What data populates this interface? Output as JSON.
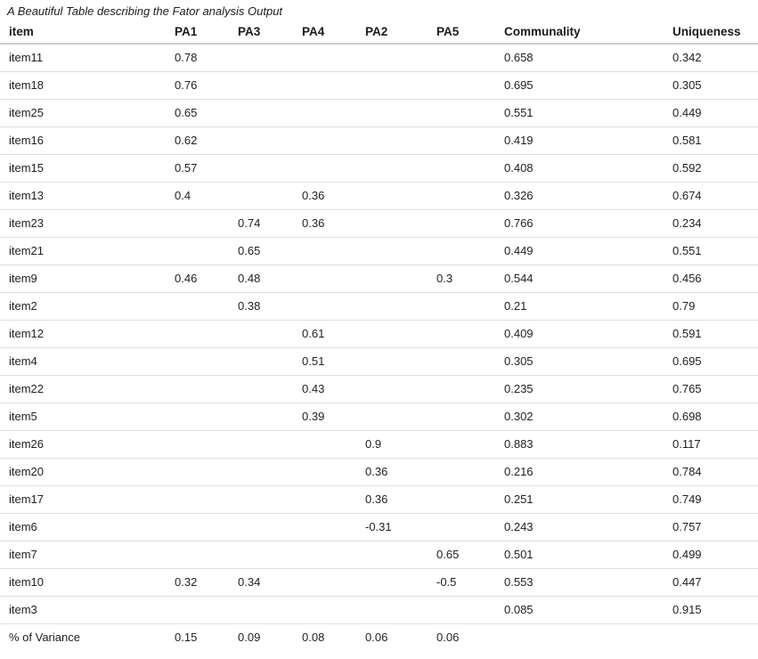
{
  "title": "A Beautiful Table describing the Fator analysis Output",
  "chart_data": {
    "type": "table",
    "title": "A Beautiful Table describing the Fator analysis Output",
    "columns": [
      "item",
      "PA1",
      "PA3",
      "PA4",
      "PA2",
      "PA5",
      "Communality",
      "Uniqueness"
    ],
    "rows": [
      [
        "item11",
        0.78,
        null,
        null,
        null,
        null,
        0.658,
        0.342
      ],
      [
        "item18",
        0.76,
        null,
        null,
        null,
        null,
        0.695,
        0.305
      ],
      [
        "item25",
        0.65,
        null,
        null,
        null,
        null,
        0.551,
        0.449
      ],
      [
        "item16",
        0.62,
        null,
        null,
        null,
        null,
        0.419,
        0.581
      ],
      [
        "item15",
        0.57,
        null,
        null,
        null,
        null,
        0.408,
        0.592
      ],
      [
        "item13",
        0.4,
        null,
        0.36,
        null,
        null,
        0.326,
        0.674
      ],
      [
        "item23",
        null,
        0.74,
        0.36,
        null,
        null,
        0.766,
        0.234
      ],
      [
        "item21",
        null,
        0.65,
        null,
        null,
        null,
        0.449,
        0.551
      ],
      [
        "item9",
        0.46,
        0.48,
        null,
        null,
        0.3,
        0.544,
        0.456
      ],
      [
        "item2",
        null,
        0.38,
        null,
        null,
        null,
        0.21,
        0.79
      ],
      [
        "item12",
        null,
        null,
        0.61,
        null,
        null,
        0.409,
        0.591
      ],
      [
        "item4",
        null,
        null,
        0.51,
        null,
        null,
        0.305,
        0.695
      ],
      [
        "item22",
        null,
        null,
        0.43,
        null,
        null,
        0.235,
        0.765
      ],
      [
        "item5",
        null,
        null,
        0.39,
        null,
        null,
        0.302,
        0.698
      ],
      [
        "item26",
        null,
        null,
        null,
        0.9,
        null,
        0.883,
        0.117
      ],
      [
        "item20",
        null,
        null,
        null,
        0.36,
        null,
        0.216,
        0.784
      ],
      [
        "item17",
        null,
        null,
        null,
        0.36,
        null,
        0.251,
        0.749
      ],
      [
        "item6",
        null,
        null,
        null,
        -0.31,
        null,
        0.243,
        0.757
      ],
      [
        "item7",
        null,
        null,
        null,
        null,
        0.65,
        0.501,
        0.499
      ],
      [
        "item10",
        0.32,
        0.34,
        null,
        null,
        -0.5,
        0.553,
        0.447
      ],
      [
        "item3",
        null,
        null,
        null,
        null,
        null,
        0.085,
        0.915
      ],
      [
        "% of Variance",
        0.15,
        0.09,
        0.08,
        0.06,
        0.06,
        null,
        null
      ]
    ]
  }
}
